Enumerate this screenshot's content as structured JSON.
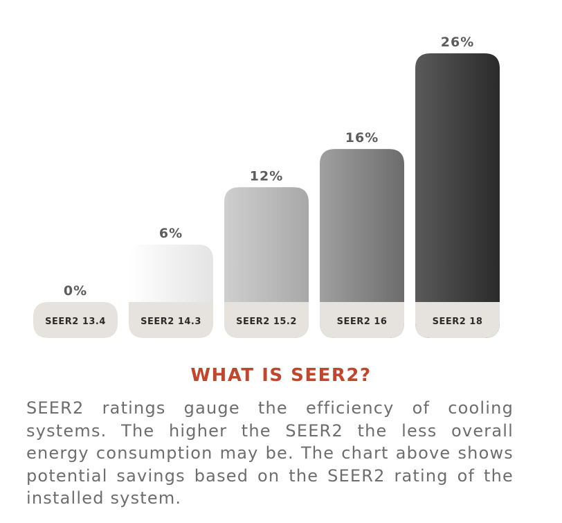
{
  "chart_data": {
    "type": "bar",
    "categories": [
      "SEER2 13.4",
      "SEER2 14.3",
      "SEER2 15.2",
      "SEER2 16",
      "SEER2 18"
    ],
    "values": [
      0,
      6,
      12,
      16,
      26
    ],
    "value_labels": [
      "0%",
      "6%",
      "12%",
      "16%",
      "26%"
    ],
    "unit": "%",
    "ylim": [
      0,
      26
    ],
    "grid": false,
    "legend": "none",
    "colors": {
      "label_pill": "#e6e2dd",
      "bar_gradients": [
        [
          "#e6e2dd",
          "#e6e2dd"
        ],
        [
          "#ffffff",
          "#e4e4e4"
        ],
        [
          "#cfcfcf",
          "#a8a8a8"
        ],
        [
          "#a0a0a0",
          "#6c6c6c"
        ],
        [
          "#5a5a5a",
          "#2a2a2a"
        ]
      ]
    }
  },
  "info": {
    "heading": "WHAT IS SEER2?",
    "description": "SEER2 ratings gauge the efficiency of cooling systems. The higher the SEER2 the less overall energy consumption may be. The chart above shows potential savings based on the SEER2 rating of the installed system."
  }
}
